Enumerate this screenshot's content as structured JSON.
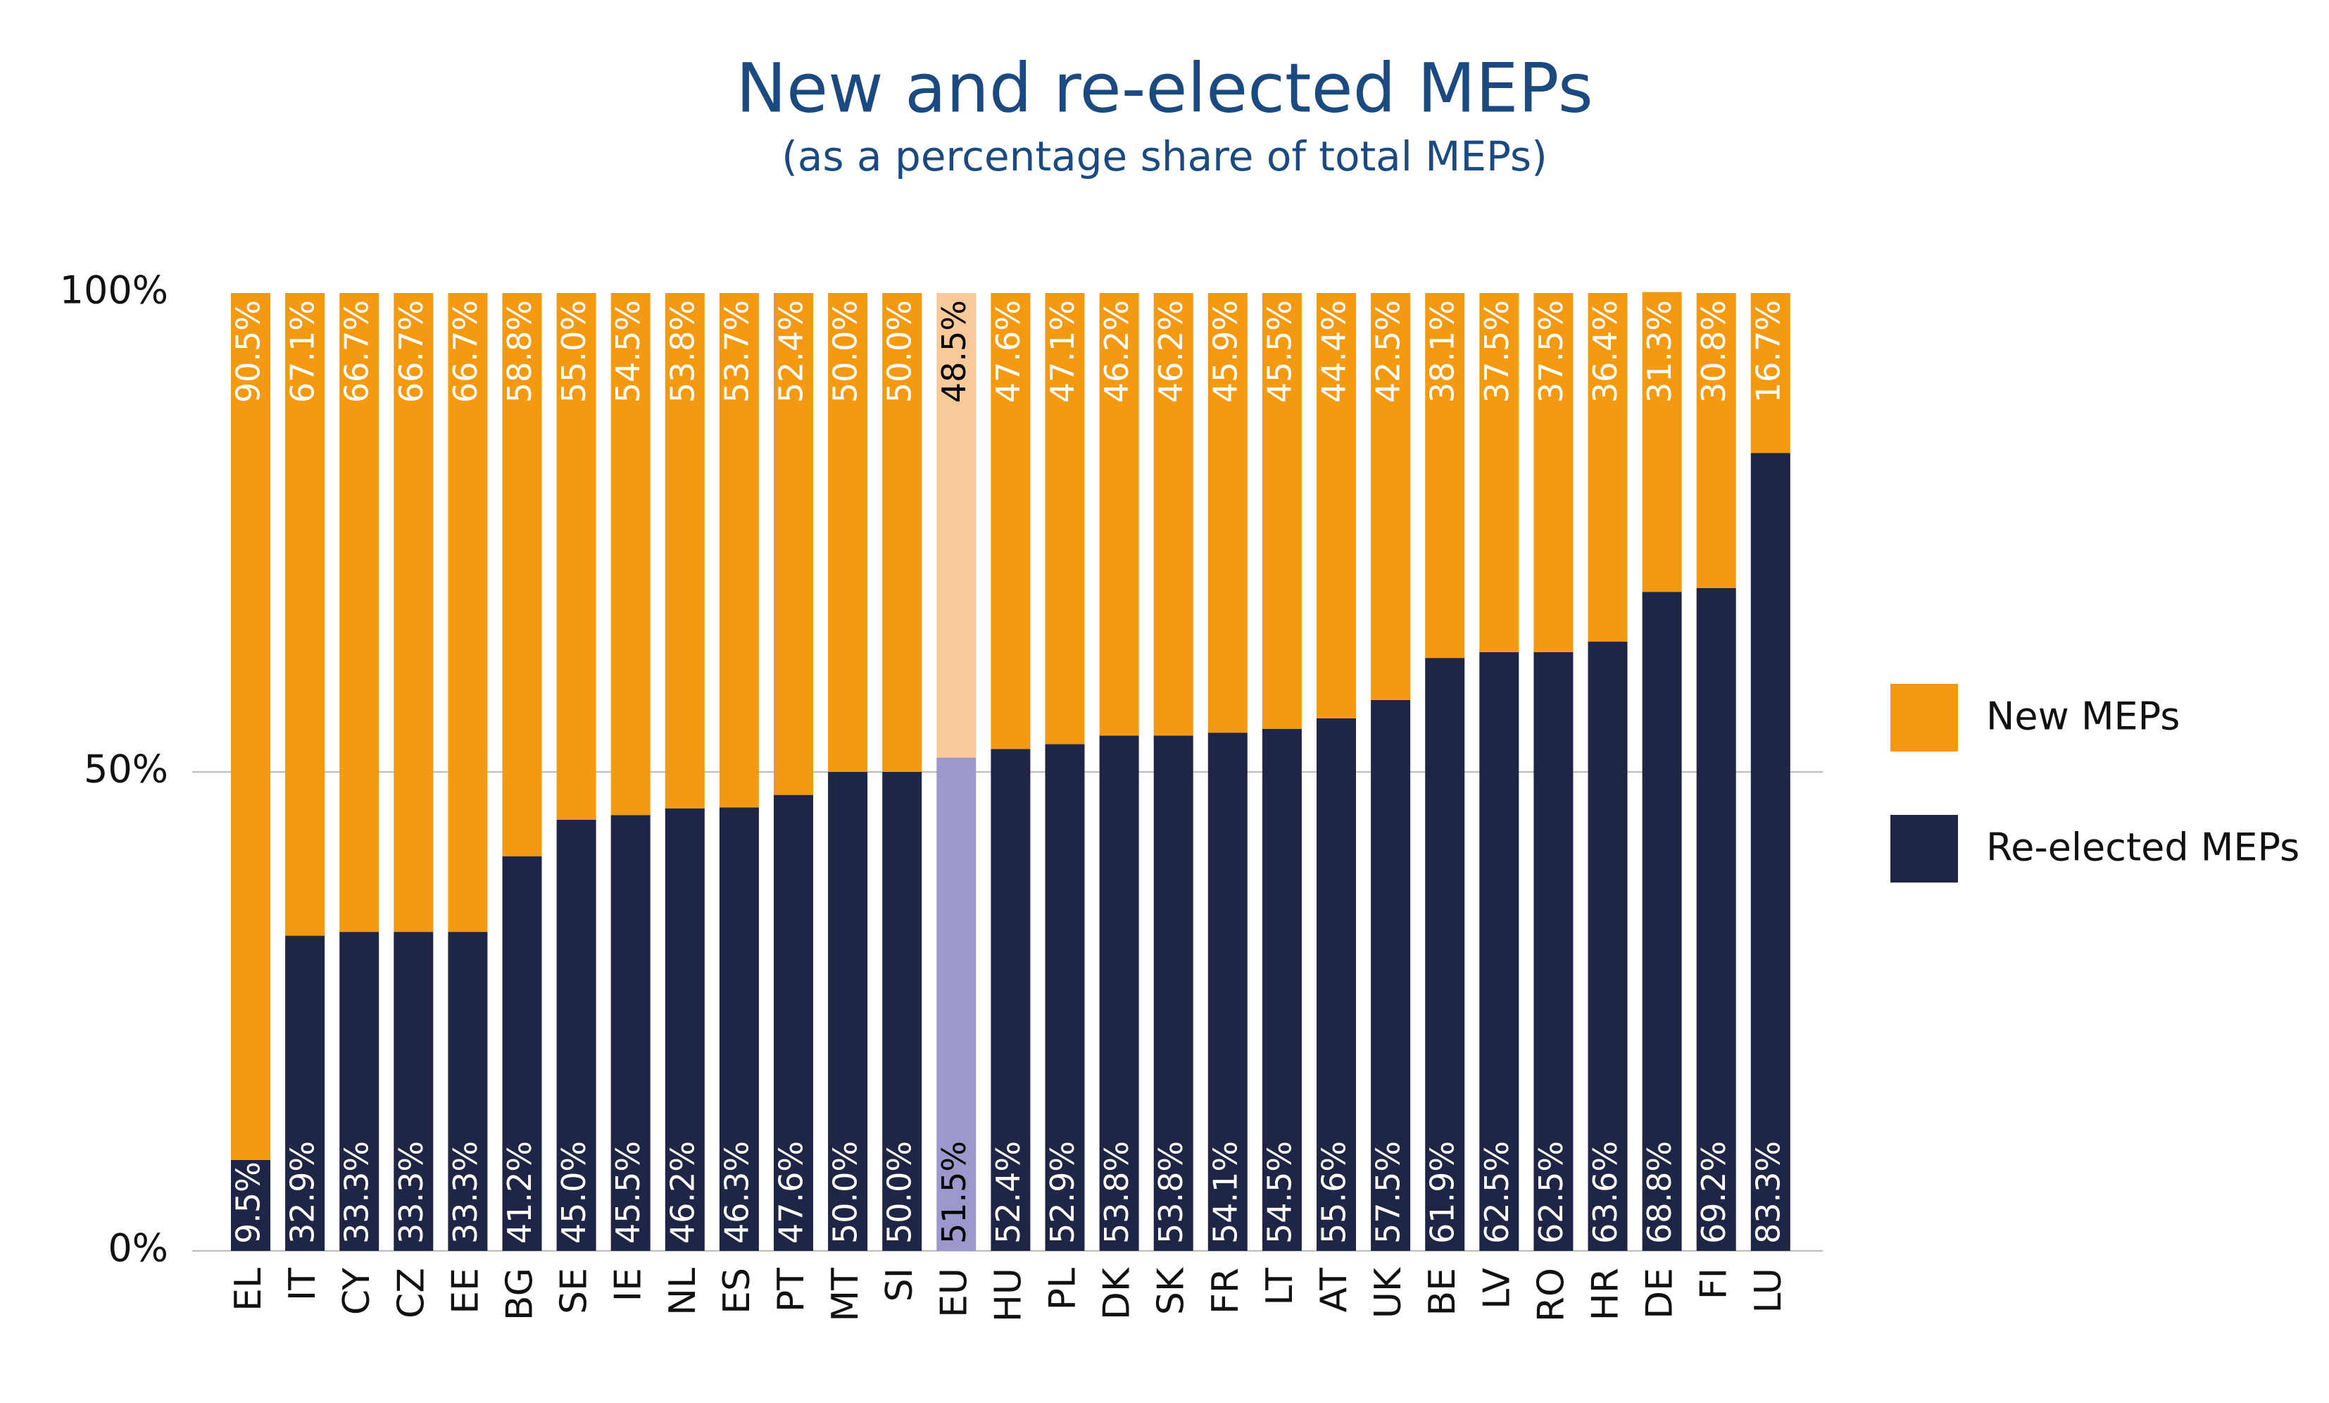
{
  "chart_data": {
    "type": "stacked_bar",
    "title": "New and re-elected MEPs",
    "subtitle": "(as a percentage share of total MEPs)",
    "categories": [
      "EL",
      "IT",
      "CY",
      "CZ",
      "EE",
      "BG",
      "SE",
      "IE",
      "NL",
      "ES",
      "PT",
      "MT",
      "SI",
      "EU",
      "HU",
      "PL",
      "DK",
      "SK",
      "FR",
      "LT",
      "AT",
      "UK",
      "BE",
      "LV",
      "RO",
      "HR",
      "DE",
      "FI",
      "LU"
    ],
    "series": [
      {
        "name": "Re-elected MEPs",
        "color": "#1f2544",
        "highlight_color": "#9b98cb",
        "values": [
          9.5,
          32.9,
          33.3,
          33.3,
          33.3,
          41.2,
          45.0,
          45.5,
          46.2,
          46.3,
          47.6,
          50.0,
          50.0,
          51.5,
          52.4,
          52.9,
          53.8,
          53.8,
          54.1,
          54.5,
          55.6,
          57.5,
          61.9,
          62.5,
          62.5,
          63.6,
          68.8,
          69.2,
          83.3
        ],
        "value_labels": [
          "9.5%",
          "32.9%",
          "33.3%",
          "33.3%",
          "33.3%",
          "41.2%",
          "45.0%",
          "45.5%",
          "46.2%",
          "46.3%",
          "47.6%",
          "50.0%",
          "50.0%",
          "51.5%",
          "52.4%",
          "52.9%",
          "53.8%",
          "53.8%",
          "54.1%",
          "54.5%",
          "55.6%",
          "57.5%",
          "61.9%",
          "62.5%",
          "62.5%",
          "63.6%",
          "68.8%",
          "69.2%",
          "83.3%"
        ]
      },
      {
        "name": "New MEPs",
        "color": "#f39a12",
        "highlight_color": "#f9c99a",
        "values": [
          90.5,
          67.1,
          66.7,
          66.7,
          66.7,
          58.8,
          55.0,
          54.5,
          53.8,
          53.7,
          52.4,
          50.0,
          50.0,
          48.5,
          47.6,
          47.1,
          46.2,
          46.2,
          45.9,
          45.5,
          44.4,
          42.5,
          38.1,
          37.5,
          37.5,
          36.4,
          31.3,
          30.8,
          16.7
        ],
        "value_labels": [
          "90.5%",
          "67.1%",
          "66.7%",
          "66.7%",
          "66.7%",
          "58.8%",
          "55.0%",
          "54.5%",
          "53.8%",
          "53.7%",
          "52.4%",
          "50.0%",
          "50.0%",
          "48.5%",
          "47.6%",
          "47.1%",
          "46.2%",
          "46.2%",
          "45.9%",
          "45.5%",
          "44.4%",
          "42.5%",
          "38.1%",
          "37.5%",
          "37.5%",
          "36.4%",
          "31.3%",
          "30.8%",
          "16.7%"
        ]
      }
    ],
    "highlight_category": "EU",
    "label_color": "#ffffff",
    "highlight_label_color": "#000000",
    "ylim": [
      0,
      100
    ],
    "yticks": [
      {
        "value": 0,
        "label": "0%"
      },
      {
        "value": 50,
        "label": "50%"
      },
      {
        "value": 100,
        "label": "100%"
      }
    ],
    "grid": true,
    "legend": "right"
  }
}
